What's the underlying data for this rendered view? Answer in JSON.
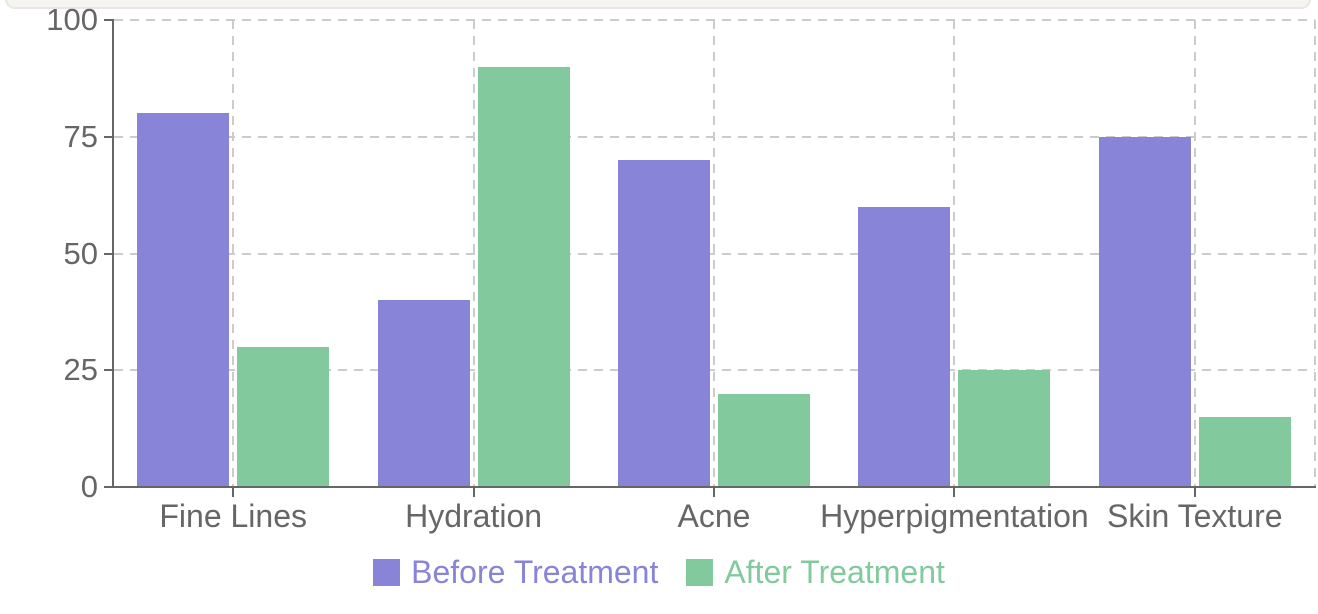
{
  "page": {
    "background": "#ffffff",
    "top_strip": {
      "fill": "#f5f4f0",
      "edge": "#e8e7e3"
    }
  },
  "chart_data": {
    "type": "bar",
    "title": "",
    "xlabel": "",
    "ylabel": "",
    "categories": [
      "Fine Lines",
      "Hydration",
      "Acne",
      "Hyperpigmentation",
      "Skin Texture"
    ],
    "series": [
      {
        "name": "Before Treatment",
        "color": "#8884d8",
        "values": [
          80,
          40,
          70,
          60,
          75
        ]
      },
      {
        "name": "After Treatment",
        "color": "#82ca9d",
        "values": [
          30,
          90,
          20,
          25,
          15
        ]
      }
    ],
    "y_ticks": [
      0,
      25,
      50,
      75,
      100
    ],
    "ylim": [
      0,
      100
    ],
    "grid": "dashed, horizontal at y-ticks and vertical at category centers plus right border",
    "axis_color": "#666666",
    "grid_color": "#cccccc",
    "label_color": "#666666",
    "legend_position": "bottom"
  }
}
